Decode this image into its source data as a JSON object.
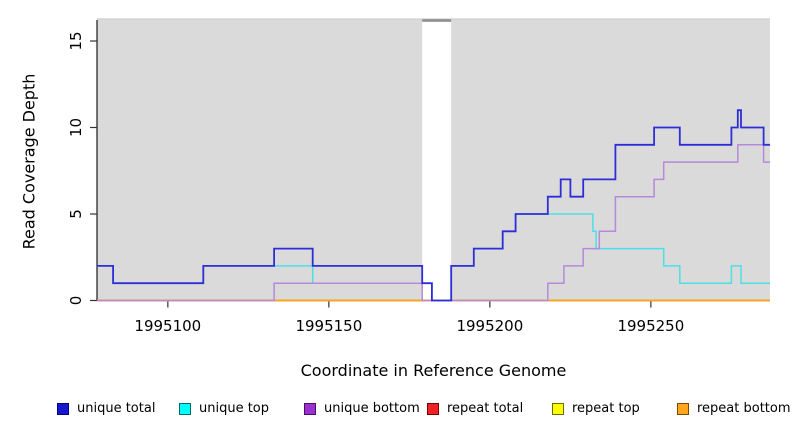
{
  "chart_data": {
    "type": "line",
    "subtype": "step-coverage",
    "title": "",
    "xlabel": "Coordinate in Reference Genome",
    "ylabel": "Read Coverage Depth",
    "xlim": [
      1995078,
      1995287
    ],
    "ylim": [
      0,
      16.2
    ],
    "x_ticks": [
      "1995100",
      "1995150",
      "1995200",
      "1995250"
    ],
    "x_tick_values": [
      1995100,
      1995150,
      1995200,
      1995250
    ],
    "y_ticks": [
      "0",
      "5",
      "10",
      "15"
    ],
    "y_tick_values": [
      0,
      5,
      10,
      15
    ],
    "grid": "off",
    "panel_background": "#dadada",
    "gap_region": {
      "from": 1995179,
      "to": 1995188
    },
    "series": [
      {
        "name": "repeat total",
        "color": "#e02020",
        "width": 1.4,
        "steps": [
          [
            1995078,
            0
          ],
          [
            1995287,
            0
          ]
        ]
      },
      {
        "name": "repeat top",
        "color": "#ffff00",
        "width": 1.4,
        "steps": [
          [
            1995078,
            0
          ],
          [
            1995287,
            0
          ]
        ]
      },
      {
        "name": "repeat bottom",
        "color": "#ffa01e",
        "width": 1.6,
        "steps": [
          [
            1995078,
            0
          ],
          [
            1995287,
            0
          ]
        ]
      },
      {
        "name": "unique top",
        "color": "#4cdfe8",
        "width": 1.5,
        "steps": [
          [
            1995078,
            2
          ],
          [
            1995083,
            1
          ],
          [
            1995111,
            2
          ],
          [
            1995145,
            1
          ],
          [
            1995182,
            0
          ],
          [
            1995188,
            2
          ],
          [
            1995195,
            3
          ],
          [
            1995204,
            4
          ],
          [
            1995208,
            5
          ],
          [
            1995232,
            4
          ],
          [
            1995233,
            3
          ],
          [
            1995254,
            2
          ],
          [
            1995259,
            1
          ],
          [
            1995275,
            2
          ],
          [
            1995278,
            1
          ],
          [
            1995287,
            1
          ]
        ]
      },
      {
        "name": "unique bottom",
        "color": "#b58ad9",
        "width": 1.5,
        "steps": [
          [
            1995078,
            0
          ],
          [
            1995133,
            1
          ],
          [
            1995179,
            0
          ],
          [
            1995218,
            1
          ],
          [
            1995223,
            2
          ],
          [
            1995229,
            3
          ],
          [
            1995234,
            4
          ],
          [
            1995239,
            6
          ],
          [
            1995251,
            7
          ],
          [
            1995254,
            8
          ],
          [
            1995277,
            9
          ],
          [
            1995285,
            8
          ],
          [
            1995287,
            8
          ]
        ]
      },
      {
        "name": "unique total",
        "color": "#2e2ed8",
        "width": 1.8,
        "steps": [
          [
            1995078,
            2
          ],
          [
            1995083,
            1
          ],
          [
            1995111,
            2
          ],
          [
            1995133,
            3
          ],
          [
            1995145,
            2
          ],
          [
            1995179,
            1
          ],
          [
            1995182,
            0
          ],
          [
            1995188,
            2
          ],
          [
            1995195,
            3
          ],
          [
            1995204,
            4
          ],
          [
            1995208,
            5
          ],
          [
            1995218,
            6
          ],
          [
            1995222,
            7
          ],
          [
            1995225,
            6
          ],
          [
            1995229,
            7
          ],
          [
            1995239,
            9
          ],
          [
            1995251,
            10
          ],
          [
            1995259,
            9
          ],
          [
            1995275,
            10
          ],
          [
            1995277,
            11
          ],
          [
            1995278,
            10
          ],
          [
            1995285,
            9
          ],
          [
            1995287,
            9
          ]
        ]
      }
    ],
    "legend": [
      {
        "label": "unique total",
        "fill": "#1616cd",
        "edge": "#00008b"
      },
      {
        "label": "unique top",
        "fill": "#00ffff",
        "edge": "#006b6b"
      },
      {
        "label": "unique bottom",
        "fill": "#9a30d0",
        "edge": "#4b0d6b"
      },
      {
        "label": "repeat total",
        "fill": "#ee2222",
        "edge": "#7a0000"
      },
      {
        "label": "repeat top",
        "fill": "#ffff00",
        "edge": "#6b6b00"
      },
      {
        "label": "repeat bottom",
        "fill": "#ffa51e",
        "edge": "#7a4c00"
      }
    ],
    "legend_position": "bottom"
  }
}
